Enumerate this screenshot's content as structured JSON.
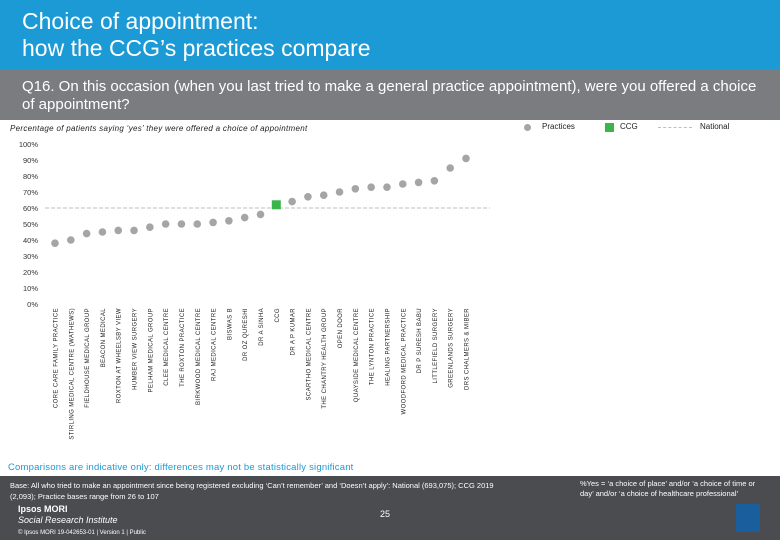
{
  "header": {
    "title_line1": "Choice of appointment:",
    "title_line2": "how the CCG’s practices compare",
    "question": "Q16. On this occasion (when you last tried to make a general practice appointment), were you offered a choice of appointment?"
  },
  "colors": {
    "header_bg": "#1b9ad6",
    "question_bg": "#7a7c80",
    "practice_marker": "#a5a5a5",
    "ccg_marker": "#39b54a",
    "national_line": "#bfbfbf",
    "footer_bg": "#4b4c50"
  },
  "chart_data": {
    "type": "scatter",
    "title": "Percentage of patients saying ‘yes’ they were offered a choice of appointment",
    "legend": [
      "Practices",
      "CCG",
      "National"
    ],
    "legend_position": "top-right",
    "ylim": [
      0,
      100
    ],
    "yticks": [
      "0%",
      "10%",
      "20%",
      "30%",
      "40%",
      "50%",
      "60%",
      "70%",
      "80%",
      "90%",
      "100%"
    ],
    "categories": [
      "CORE CARE FAMILY PRACTICE",
      "STIRLING MEDICAL CENTRE (WATHEWS)",
      "FIELDHOUSE MEDICAL GROUP",
      "BEACON MEDICAL",
      "ROXTON AT WHEELSBY VIEW",
      "HUMBER VIEW SURGERY",
      "PELHAM MEDICAL GROUP",
      "CLEE MEDICAL CENTRE",
      "THE ROXTON PRACTICE",
      "BIRKWOOD MEDICAL CENTRE",
      "RAJ MEDICAL CENTRE",
      "BISWAS B",
      "DR OZ QURESHI",
      "DR A SINHA",
      "CCG",
      "DR A P KUMAR",
      "SCARTHO MEDICAL CENTRE",
      "THE CHANTRY HEALTH GROUP",
      "OPEN DOOR",
      "QUAYSIDE MEDICAL CENTRE",
      "THE LYNTON PRACTICE",
      "HEALING PARTNERSHIP",
      "WOODFORD MEDICAL PRACTICE",
      "DR P SURESH BABU",
      "LITTLEFIELD SURGERY",
      "GREENLANDS SURGERY",
      "DRS CHALMERS & MIBER"
    ],
    "values": [
      38,
      40,
      44,
      45,
      46,
      46,
      48,
      50,
      50,
      50,
      51,
      52,
      54,
      56,
      62,
      64,
      67,
      68,
      70,
      72,
      73,
      73,
      75,
      76,
      77,
      85,
      91
    ],
    "ccg_index": 14,
    "national_value": 60,
    "xlabel": "",
    "ylabel": ""
  },
  "footer": {
    "note": "Comparisons are indicative only: differences may not be statistically significant",
    "base_line1": "Base: All who tried to make an appointment since being registered excluding ‘Can’t remember’ and ‘Doesn’t apply’: National (693,075); CCG 2019",
    "base_line2": "(2,093); Practice bases range from 26 to 107",
    "yes_definition": "%Yes = ‘a choice of place’ and/or ‘a choice of time or day’ and/or ‘a choice of healthcare professional’",
    "brand_line1": "Ipsos MORI",
    "brand_line2": "Social Research Institute",
    "copyright": "© Ipsos MORI     19-042653-01 | Version 1 | Public",
    "page_number": "25"
  }
}
